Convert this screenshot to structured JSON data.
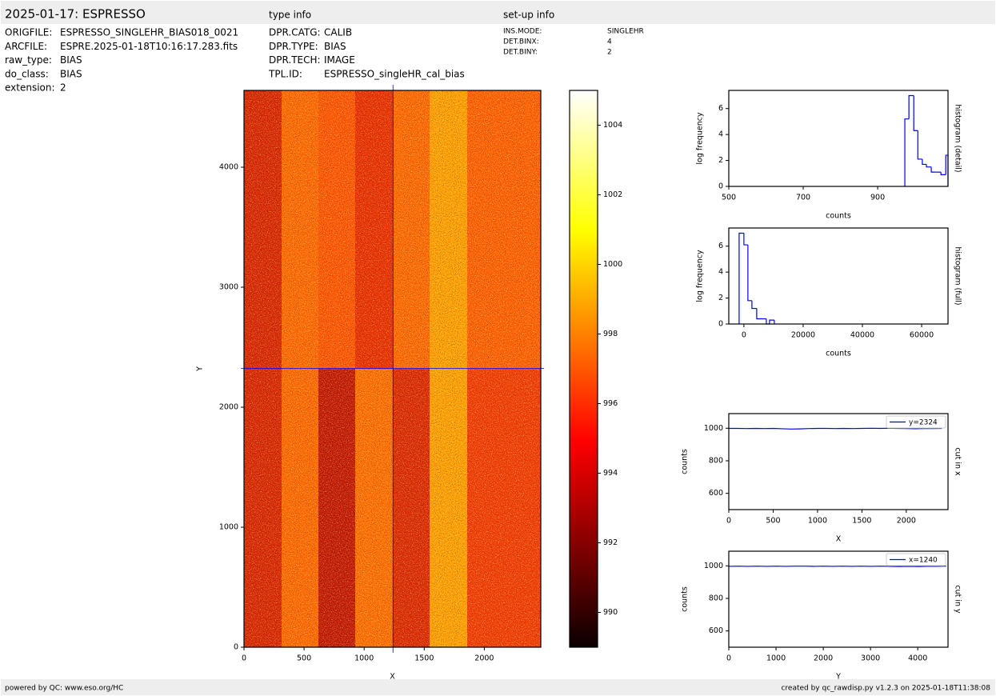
{
  "header": {
    "title": "2025-01-17: ESPRESSO",
    "type_info": "type info",
    "setup_info": "set-up info"
  },
  "info": {
    "left": [
      [
        "ORIGFILE:",
        "ESPRESSO_SINGLEHR_BIAS018_0021"
      ],
      [
        "ARCFILE:",
        "ESPRE.2025-01-18T10:16:17.283.fits"
      ],
      [
        "raw_type:",
        "BIAS"
      ],
      [
        "do_class:",
        "BIAS"
      ],
      [
        "extension:",
        "2"
      ]
    ],
    "type": [
      [
        "DPR.CATG:",
        "CALIB"
      ],
      [
        "DPR.TYPE:",
        "BIAS"
      ],
      [
        "DPR.TECH:",
        "IMAGE"
      ],
      [
        "TPL.ID:",
        "ESPRESSO_singleHR_cal_bias"
      ]
    ],
    "setup": [
      [
        "INS.MODE:",
        "SINGLEHR"
      ],
      [
        "DET.BINX:",
        "4"
      ],
      [
        "DET.BINY:",
        "2"
      ]
    ]
  },
  "footer": {
    "left": "powered by QC: www.eso.org/HC",
    "right": "created by qc_rawdisp.py v1.2.3 on 2025-01-18T11:38:08"
  },
  "chart_data": [
    {
      "type": "image",
      "xlabel": "X",
      "ylabel": "Y",
      "xlim": [
        0,
        2470
      ],
      "ylim": [
        0,
        4640
      ],
      "xticks": [
        0,
        500,
        1000,
        1500,
        2000
      ],
      "yticks": [
        0,
        1000,
        2000,
        3000,
        4000
      ],
      "crosshair": {
        "x": 1240,
        "y": 2324
      },
      "crosshair_color": "#0000ff"
    },
    {
      "type": "colorbar",
      "ylim": [
        989,
        1005
      ],
      "yticks": [
        990,
        992,
        994,
        996,
        998,
        1000,
        1002,
        1004
      ]
    },
    {
      "type": "histogram",
      "xlabel": "counts",
      "ylabel": "log frequency",
      "side_label": "histogram (detail)",
      "xlim": [
        500,
        1089
      ],
      "ylim": [
        0,
        7.4
      ],
      "xticks": [
        500,
        700,
        900
      ],
      "yticks": [
        0,
        2,
        4,
        6
      ],
      "color": "#0000ff",
      "bins": [
        973,
        984,
        997,
        1008,
        1020,
        1031,
        1044,
        1057,
        1070,
        1083,
        1089
      ],
      "values": [
        5.2,
        7.0,
        4.3,
        2.1,
        1.7,
        1.5,
        1.1,
        1.1,
        0.9,
        2.4
      ]
    },
    {
      "type": "histogram",
      "xlabel": "counts",
      "ylabel": "log frequency",
      "side_label": "histogram (full)",
      "xlim": [
        -5100,
        68900
      ],
      "ylim": [
        0,
        7.4
      ],
      "xticks": [
        0,
        20000,
        40000,
        60000
      ],
      "yticks": [
        0,
        2,
        4,
        6
      ],
      "color": "#0000ff",
      "bins": [
        -1620,
        0,
        1350,
        2700,
        4320,
        7570,
        8650,
        10270
      ],
      "values": [
        7.0,
        6.1,
        1.8,
        1.2,
        0.4,
        0,
        0.3
      ]
    },
    {
      "type": "line",
      "xlabel": "X",
      "ylabel": "counts",
      "side_label": "cut in x",
      "xlim": [
        0,
        2470
      ],
      "ylim": [
        500,
        1090
      ],
      "xticks": [
        0,
        500,
        1000,
        1500,
        2000
      ],
      "yticks": [
        600,
        800,
        1000
      ],
      "series": [
        {
          "name": "y=2324",
          "color": "#0000ff",
          "x": [
            0,
            100,
            200,
            300,
            400,
            500,
            600,
            700,
            800,
            900,
            1000,
            1100,
            1200,
            1300,
            1400,
            1500,
            1600,
            1700,
            1800,
            1900,
            2000,
            2100,
            2200,
            2300,
            2400
          ],
          "values": [
            999,
            999,
            998,
            999,
            998,
            999,
            997,
            995,
            996,
            998,
            999,
            999,
            998,
            999,
            998,
            999,
            1000,
            999,
            1000,
            999,
            998,
            997,
            998,
            998,
            999
          ]
        }
      ]
    },
    {
      "type": "line",
      "xlabel": "Y",
      "ylabel": "counts",
      "side_label": "cut in y",
      "xlim": [
        0,
        4640
      ],
      "ylim": [
        500,
        1090
      ],
      "xticks": [
        0,
        1000,
        2000,
        3000,
        4000
      ],
      "yticks": [
        600,
        800,
        1000
      ],
      "series": [
        {
          "name": "x=1240",
          "color": "#0000ff",
          "x": [
            0,
            200,
            400,
            600,
            800,
            1000,
            1200,
            1400,
            1600,
            1800,
            2000,
            2200,
            2400,
            2600,
            2800,
            3000,
            3200,
            3400,
            3600,
            3800,
            4000,
            4200,
            4400,
            4600
          ],
          "values": [
            997,
            998,
            997,
            998,
            997,
            998,
            997,
            998,
            998,
            997,
            998,
            997,
            998,
            997,
            998,
            997,
            998,
            997,
            996,
            997,
            996,
            997,
            997,
            998
          ]
        }
      ]
    }
  ]
}
